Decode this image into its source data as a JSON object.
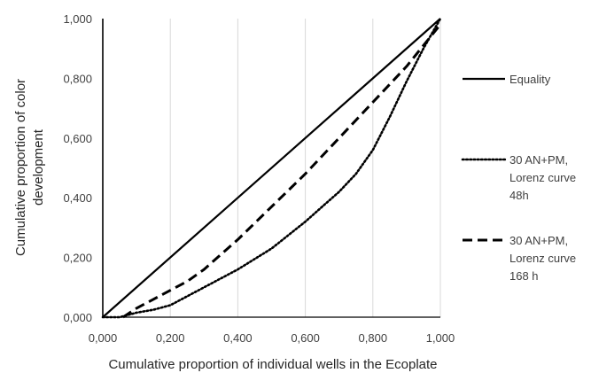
{
  "chart_data": {
    "type": "line",
    "xlabel": "Cumulative proportion of individual wells in the Ecoplate",
    "ylabel": "Cumulative proportion of color development",
    "xlim": [
      0,
      1
    ],
    "ylim": [
      0,
      1
    ],
    "x_ticks": [
      "0,000",
      "0,200",
      "0,400",
      "0,600",
      "0,800",
      "1,000"
    ],
    "y_ticks": [
      "0,000",
      "0,200",
      "0,400",
      "0,600",
      "0,800",
      "1,000"
    ],
    "grid": "vertical",
    "legend_position": "right",
    "series": [
      {
        "name": "Equality",
        "style": "solid",
        "color": "#000000",
        "x": [
          0.0,
          1.0
        ],
        "y": [
          0.0,
          1.0
        ]
      },
      {
        "name": "30 AN+PM, Lorenz curve 48h",
        "style": "dotted",
        "color": "#000000",
        "x": [
          0.0,
          0.05,
          0.1,
          0.15,
          0.2,
          0.3,
          0.4,
          0.5,
          0.6,
          0.65,
          0.7,
          0.75,
          0.8,
          0.85,
          0.9,
          0.95,
          1.0
        ],
        "y": [
          0.0,
          0.0,
          0.015,
          0.025,
          0.04,
          0.1,
          0.16,
          0.23,
          0.32,
          0.37,
          0.42,
          0.48,
          0.56,
          0.67,
          0.79,
          0.9,
          1.0
        ]
      },
      {
        "name": "30 AN+PM, Lorenz curve 168 h",
        "style": "dashed",
        "color": "#000000",
        "x": [
          0.06,
          0.1,
          0.15,
          0.2,
          0.25,
          0.3,
          0.35,
          0.4,
          0.5,
          0.6,
          0.7,
          0.8,
          0.9,
          0.95,
          1.0
        ],
        "y": [
          0.0,
          0.03,
          0.06,
          0.09,
          0.12,
          0.16,
          0.21,
          0.26,
          0.37,
          0.48,
          0.6,
          0.72,
          0.84,
          0.91,
          0.98
        ]
      }
    ]
  },
  "legend": [
    {
      "lines": [
        "Equality"
      ]
    },
    {
      "lines": [
        "30 AN+PM,",
        "Lorenz curve",
        "48h"
      ]
    },
    {
      "lines": [
        "30 AN+PM,",
        "Lorenz curve",
        "168 h"
      ]
    }
  ]
}
